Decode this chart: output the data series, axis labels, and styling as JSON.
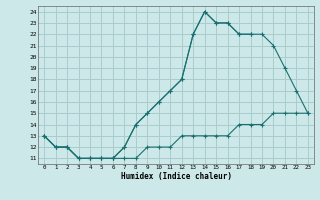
{
  "xlabel": "Humidex (Indice chaleur)",
  "bg_color": "#cce8e8",
  "grid_color": "#aacccc",
  "line_color": "#1a7070",
  "xlim": [
    -0.5,
    23.5
  ],
  "ylim": [
    10.5,
    24.5
  ],
  "xticks": [
    0,
    1,
    2,
    3,
    4,
    5,
    6,
    7,
    8,
    9,
    10,
    11,
    12,
    13,
    14,
    15,
    16,
    17,
    18,
    19,
    20,
    21,
    22,
    23
  ],
  "yticks": [
    11,
    12,
    13,
    14,
    15,
    16,
    17,
    18,
    19,
    20,
    21,
    22,
    23,
    24
  ],
  "line1_x": [
    0,
    1,
    2,
    3,
    4,
    5,
    6,
    7,
    8,
    9,
    10,
    11,
    12,
    13,
    14,
    15,
    16,
    17,
    18,
    19,
    20,
    21,
    22,
    23
  ],
  "line1_y": [
    13,
    12,
    12,
    11,
    11,
    11,
    11,
    11,
    11,
    12,
    12,
    12,
    13,
    13,
    13,
    13,
    13,
    14,
    14,
    14,
    15,
    15,
    15,
    15
  ],
  "line2_x": [
    0,
    1,
    2,
    3,
    4,
    5,
    6,
    7,
    8,
    9,
    10,
    11,
    12,
    13,
    14,
    15,
    16,
    17,
    18,
    19,
    20,
    21,
    22,
    23
  ],
  "line2_y": [
    13,
    12,
    12,
    11,
    11,
    11,
    11,
    12,
    14,
    15,
    16,
    17,
    18,
    22,
    24,
    23,
    23,
    22,
    22,
    22,
    21,
    19,
    17,
    15
  ],
  "line3_x": [
    0,
    1,
    2,
    3,
    4,
    5,
    6,
    7,
    8,
    9,
    10,
    11,
    12,
    13,
    14,
    15,
    16,
    17,
    18
  ],
  "line3_y": [
    13,
    12,
    12,
    11,
    11,
    11,
    11,
    12,
    14,
    15,
    16,
    17,
    18,
    22,
    24,
    23,
    23,
    22,
    22
  ]
}
